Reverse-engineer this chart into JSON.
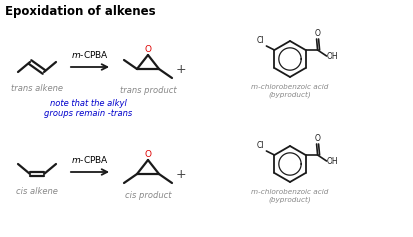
{
  "title": "Epoxidation of alkenes",
  "bg_color": "#ffffff",
  "figsize": [
    4.14,
    2.37
  ],
  "dpi": 100,
  "row1": {
    "trans_alkene_label": "trans alkene",
    "reagent": "m-CPBA",
    "product_label": "trans product",
    "plus": "+",
    "byproduct_label": "m-chlorobenzoic acid\n(byproduct)",
    "note": "note that the alkyl\ngroups remain -trans",
    "note_color": "#0000cc"
  },
  "row2": {
    "cis_alkene_label": "cis alkene",
    "reagent": "m-CPBA",
    "product_label": "cis product",
    "plus": "+",
    "byproduct_label": "m-chlorobenzoic acid\n(byproduct)"
  },
  "label_color": "#888888",
  "label_fontsize": 6.0,
  "reagent_fontsize": 6.5,
  "structure_color": "#1a1a1a",
  "oxygen_color": "#dd0000",
  "title_fontsize": 8.5
}
